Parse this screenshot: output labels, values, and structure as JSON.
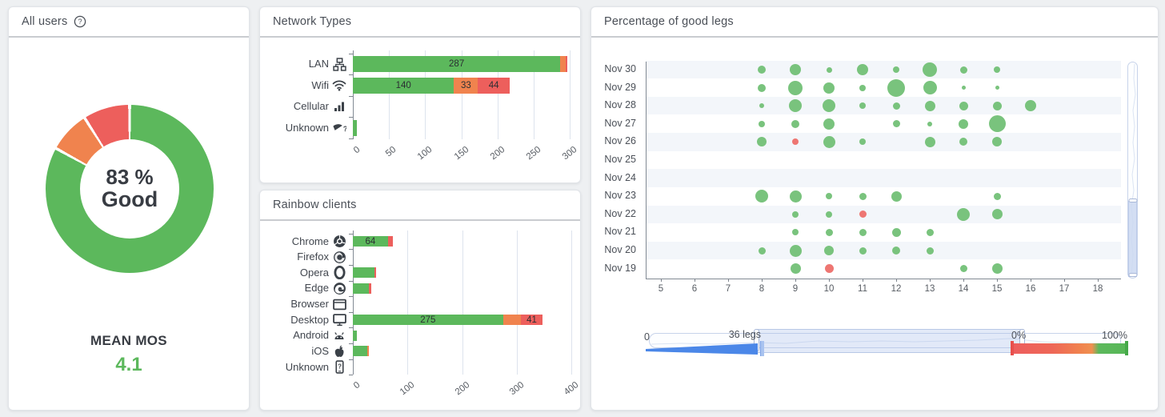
{
  "panels": {
    "all_users": {
      "title": "All users",
      "center_line1": "83 %",
      "center_line2": "Good",
      "footer_label": "MEAN MOS",
      "footer_value": "4.1"
    },
    "network_types": {
      "title": "Network Types"
    },
    "rainbow_clients": {
      "title": "Rainbow clients"
    },
    "good_legs": {
      "title": "Percentage of good legs",
      "legs_slider": {
        "min_label": "0",
        "value_label": "36 legs"
      },
      "percent_slider": {
        "min_label": "0%",
        "max_label": "100%"
      }
    }
  },
  "colors": {
    "good": "#5cb85c",
    "medium": "#f0834e",
    "poor": "#ed5f5c",
    "bubble_good": "#79c37d",
    "bubble_poor": "#ee7672",
    "accent_blue": "#4b87e8",
    "stripe": "#f3f6fa",
    "gridline": "#dde3ed"
  },
  "chart_data": [
    {
      "id": "mos_donut",
      "type": "pie",
      "title": "All users MOS quality share",
      "slices": [
        {
          "label": "Good",
          "pct": 83,
          "status": "good"
        },
        {
          "label": "Medium",
          "pct": 8,
          "status": "medium"
        },
        {
          "label": "Poor",
          "pct": 9,
          "status": "poor"
        }
      ],
      "center_text": "83 % Good"
    },
    {
      "id": "network_types",
      "type": "bar",
      "orientation": "horizontal",
      "stacked": true,
      "title": "Network Types",
      "xticks": [
        0,
        50,
        100,
        150,
        200,
        250,
        300
      ],
      "rows": [
        {
          "label": "LAN",
          "icon": "lan-icon",
          "segments": [
            {
              "status": "good",
              "value": 287,
              "show": true
            },
            {
              "status": "medium",
              "value": 7
            },
            {
              "status": "poor",
              "value": 3
            }
          ]
        },
        {
          "label": "Wifi",
          "icon": "wifi-icon",
          "segments": [
            {
              "status": "good",
              "value": 140,
              "show": true
            },
            {
              "status": "medium",
              "value": 33,
              "show": true
            },
            {
              "status": "poor",
              "value": 44,
              "show": true
            }
          ]
        },
        {
          "label": "Cellular",
          "icon": "cellular-icon",
          "segments": []
        },
        {
          "label": "Unknown",
          "icon": "wifi-question-icon",
          "segments": [
            {
              "status": "good",
              "value": 5
            }
          ]
        }
      ]
    },
    {
      "id": "rainbow_clients",
      "type": "bar",
      "orientation": "horizontal",
      "stacked": true,
      "title": "Rainbow clients",
      "xticks": [
        0,
        100,
        200,
        300,
        400
      ],
      "rows": [
        {
          "label": "Chrome",
          "icon": "chrome-icon",
          "segments": [
            {
              "status": "good",
              "value": 64,
              "show": true
            },
            {
              "status": "poor",
              "value": 9
            }
          ]
        },
        {
          "label": "Firefox",
          "icon": "firefox-icon",
          "segments": []
        },
        {
          "label": "Opera",
          "icon": "opera-icon",
          "segments": [
            {
              "status": "good",
              "value": 40
            },
            {
              "status": "poor",
              "value": 3
            }
          ]
        },
        {
          "label": "Edge",
          "icon": "edge-icon",
          "segments": [
            {
              "status": "good",
              "value": 30
            },
            {
              "status": "poor",
              "value": 3
            }
          ]
        },
        {
          "label": "Browser",
          "icon": "browser-window-icon",
          "segments": []
        },
        {
          "label": "Desktop",
          "icon": "desktop-icon",
          "segments": [
            {
              "status": "good",
              "value": 275,
              "show": true
            },
            {
              "status": "medium",
              "value": 32
            },
            {
              "status": "poor",
              "value": 41,
              "show": true
            }
          ]
        },
        {
          "label": "Android",
          "icon": "android-icon",
          "segments": [
            {
              "status": "good",
              "value": 8
            }
          ]
        },
        {
          "label": "iOS",
          "icon": "apple-icon",
          "segments": [
            {
              "status": "good",
              "value": 27
            },
            {
              "status": "medium",
              "value": 2
            }
          ]
        },
        {
          "label": "Unknown",
          "icon": "phone-question-icon",
          "segments": []
        }
      ]
    },
    {
      "id": "good_legs",
      "type": "scatter",
      "title": "Percentage of good legs",
      "xticks": [
        5,
        6,
        7,
        8,
        9,
        10,
        11,
        12,
        13,
        14,
        15,
        16,
        17,
        18
      ],
      "rows": [
        {
          "label": "Nov 30",
          "points": [
            {
              "x": 8,
              "r": 5
            },
            {
              "x": 9,
              "r": 7
            },
            {
              "x": 10,
              "r": 3.5
            },
            {
              "x": 11,
              "r": 7
            },
            {
              "x": 12,
              "r": 4
            },
            {
              "x": 13,
              "r": 9
            },
            {
              "x": 14,
              "r": 4.5
            },
            {
              "x": 15,
              "r": 4
            }
          ]
        },
        {
          "label": "Nov 29",
          "points": [
            {
              "x": 8,
              "r": 5
            },
            {
              "x": 9,
              "r": 9
            },
            {
              "x": 10,
              "r": 7
            },
            {
              "x": 11,
              "r": 4
            },
            {
              "x": 12,
              "r": 11
            },
            {
              "x": 13,
              "r": 8.5
            },
            {
              "x": 14,
              "r": 2.5
            },
            {
              "x": 15,
              "r": 2.5
            }
          ]
        },
        {
          "label": "Nov 28",
          "points": [
            {
              "x": 8,
              "r": 3
            },
            {
              "x": 9,
              "r": 8
            },
            {
              "x": 10,
              "r": 8
            },
            {
              "x": 11,
              "r": 4
            },
            {
              "x": 12,
              "r": 4.5
            },
            {
              "x": 13,
              "r": 6.5
            },
            {
              "x": 14,
              "r": 5.5
            },
            {
              "x": 15,
              "r": 5.5
            },
            {
              "x": 16,
              "r": 7
            }
          ]
        },
        {
          "label": "Nov 27",
          "points": [
            {
              "x": 8,
              "r": 4
            },
            {
              "x": 9,
              "r": 5
            },
            {
              "x": 10,
              "r": 7
            },
            {
              "x": 12,
              "r": 4.5
            },
            {
              "x": 13,
              "r": 3
            },
            {
              "x": 14,
              "r": 6
            },
            {
              "x": 15,
              "r": 10.5
            }
          ]
        },
        {
          "label": "Nov 26",
          "points": [
            {
              "x": 8,
              "r": 6
            },
            {
              "x": 9,
              "r": 4,
              "status": "poor"
            },
            {
              "x": 10,
              "r": 7.5
            },
            {
              "x": 11,
              "r": 4
            },
            {
              "x": 13,
              "r": 6.5
            },
            {
              "x": 14,
              "r": 5
            },
            {
              "x": 15,
              "r": 6
            }
          ]
        },
        {
          "label": "Nov 25",
          "points": []
        },
        {
          "label": "Nov 24",
          "points": []
        },
        {
          "label": "Nov 23",
          "points": [
            {
              "x": 8,
              "r": 8
            },
            {
              "x": 9,
              "r": 7.5
            },
            {
              "x": 10,
              "r": 4
            },
            {
              "x": 11,
              "r": 4.5
            },
            {
              "x": 12,
              "r": 6.5
            },
            {
              "x": 15,
              "r": 4.5
            }
          ]
        },
        {
          "label": "Nov 22",
          "points": [
            {
              "x": 9,
              "r": 4
            },
            {
              "x": 10,
              "r": 4
            },
            {
              "x": 11,
              "r": 4.5,
              "status": "poor"
            },
            {
              "x": 14,
              "r": 8
            },
            {
              "x": 15,
              "r": 6.5
            }
          ]
        },
        {
          "label": "Nov 21",
          "points": [
            {
              "x": 9,
              "r": 4
            },
            {
              "x": 10,
              "r": 4.5
            },
            {
              "x": 11,
              "r": 4.5
            },
            {
              "x": 12,
              "r": 5.5
            },
            {
              "x": 13,
              "r": 4.5
            }
          ]
        },
        {
          "label": "Nov 20",
          "points": [
            {
              "x": 8,
              "r": 4.5
            },
            {
              "x": 9,
              "r": 7.5
            },
            {
              "x": 10,
              "r": 6
            },
            {
              "x": 11,
              "r": 4.5
            },
            {
              "x": 12,
              "r": 5
            },
            {
              "x": 13,
              "r": 4.5
            }
          ]
        },
        {
          "label": "Nov 19",
          "points": [
            {
              "x": 9,
              "r": 6.5
            },
            {
              "x": 10,
              "r": 5.5,
              "status": "poor"
            },
            {
              "x": 14,
              "r": 4.5
            },
            {
              "x": 15,
              "r": 6.5
            }
          ]
        }
      ]
    }
  ]
}
